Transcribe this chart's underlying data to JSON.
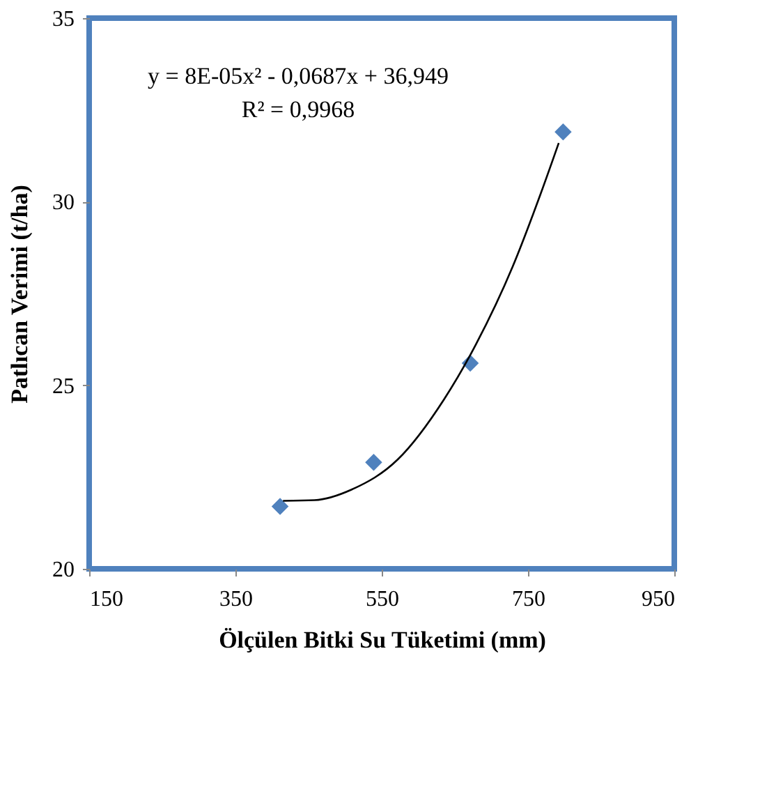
{
  "chart_data": {
    "type": "scatter",
    "xlabel": "Ölçülen Bitki  Su Tüketimi (mm)",
    "ylabel": "Patlıcan Verimi (t/ha)",
    "xlim": [
      150,
      950
    ],
    "xticks": [
      150,
      350,
      550,
      750,
      950
    ],
    "ylim": [
      20,
      35
    ],
    "yticks": [
      20,
      25,
      30,
      35
    ],
    "grid": false,
    "annotations": [
      "y = 8E-05x² - 0,0687x + 36,949",
      "R² = 0,9968"
    ],
    "series": [
      {
        "type": "scatter",
        "color": "#4f81bd",
        "marker": "diamond",
        "x": [
          411,
          539,
          671,
          798
        ],
        "values": [
          21.7,
          22.9,
          25.6,
          31.9
        ]
      },
      {
        "type": "line",
        "color": "#000000",
        "marker": "none",
        "line_style": "solid",
        "x": [
          415,
          458,
          509,
          572,
          635,
          679,
          729,
          767,
          792
        ],
        "values": [
          21.85,
          21.87,
          22.16,
          22.98,
          24.61,
          26.12,
          28.23,
          30.2,
          31.6
        ]
      }
    ]
  }
}
